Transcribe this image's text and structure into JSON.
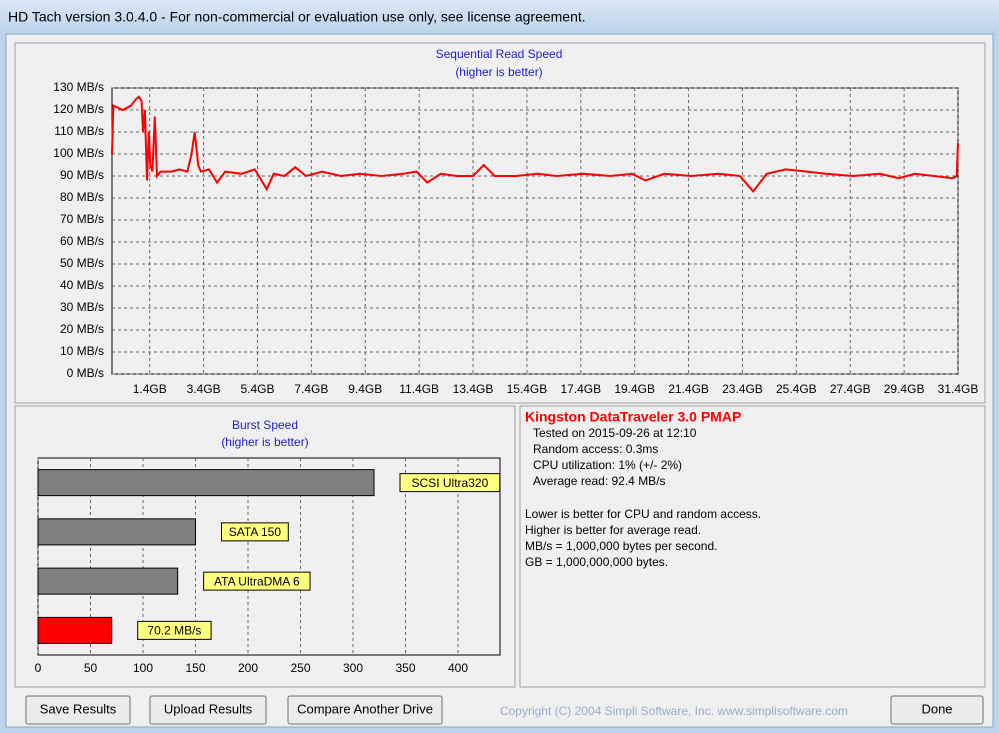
{
  "window": {
    "title": "HD Tach version 3.0.4.0  - For non-commercial or evaluation use only, see license agreement."
  },
  "chart_data": [
    {
      "type": "line",
      "title": "Sequential Read Speed",
      "subtitle": "(higher is better)",
      "color": "#ff0000",
      "grid": true,
      "x": [
        0,
        0.05,
        0.4,
        0.7,
        0.9,
        1.0,
        1.1,
        1.15,
        1.22,
        1.3,
        1.37,
        1.42,
        1.5,
        1.59,
        1.67,
        1.8,
        2.2,
        2.5,
        2.8,
        2.95,
        3.07,
        3.2,
        3.3,
        3.6,
        3.9,
        4.2,
        4.8,
        5.3,
        5.74,
        6.0,
        6.4,
        6.8,
        7.2,
        7.8,
        8.5,
        9.2,
        10.0,
        10.8,
        11.3,
        11.7,
        12.2,
        12.8,
        13.4,
        13.8,
        14.2,
        15.0,
        15.8,
        16.5,
        17.5,
        18.5,
        19.3,
        19.8,
        20.5,
        21.5,
        22.5,
        23.3,
        23.8,
        24.3,
        25.0,
        25.8,
        26.5,
        27.5,
        28.5,
        29.2,
        29.8,
        30.5,
        31.2,
        31.35,
        31.4
      ],
      "values": [
        100,
        122,
        120,
        122,
        125,
        126,
        124,
        110,
        120,
        88,
        110,
        95,
        92,
        117,
        90,
        92,
        92,
        93,
        92,
        100,
        110,
        95,
        92,
        93,
        87,
        92,
        91,
        93,
        84,
        91,
        90,
        94,
        90,
        92,
        90,
        91,
        90,
        91,
        92,
        87,
        91,
        90,
        90,
        95,
        90,
        90,
        91,
        90,
        91,
        90,
        91,
        88,
        91,
        90,
        91,
        90,
        83,
        91,
        93,
        92,
        91,
        90,
        91,
        89,
        91,
        90,
        89,
        90,
        105
      ],
      "xlim": [
        0,
        31.4
      ],
      "xticks": [
        {
          "value": 1.4,
          "label": "1.4GB"
        },
        {
          "value": 3.4,
          "label": "3.4GB"
        },
        {
          "value": 5.4,
          "label": "5.4GB"
        },
        {
          "value": 7.4,
          "label": "7.4GB"
        },
        {
          "value": 9.4,
          "label": "9.4GB"
        },
        {
          "value": 11.4,
          "label": "11.4GB"
        },
        {
          "value": 13.4,
          "label": "13.4GB"
        },
        {
          "value": 15.4,
          "label": "15.4GB"
        },
        {
          "value": 17.4,
          "label": "17.4GB"
        },
        {
          "value": 19.4,
          "label": "19.4GB"
        },
        {
          "value": 21.4,
          "label": "21.4GB"
        },
        {
          "value": 23.4,
          "label": "23.4GB"
        },
        {
          "value": 25.4,
          "label": "25.4GB"
        },
        {
          "value": 27.4,
          "label": "27.4GB"
        },
        {
          "value": 29.4,
          "label": "29.4GB"
        },
        {
          "value": 31.4,
          "label": "31.4GB"
        }
      ],
      "ylim": [
        0,
        130
      ],
      "yticks": [
        {
          "value": 0,
          "label": "0 MB/s"
        },
        {
          "value": 10,
          "label": "10 MB/s"
        },
        {
          "value": 20,
          "label": "20 MB/s"
        },
        {
          "value": 30,
          "label": "30 MB/s"
        },
        {
          "value": 40,
          "label": "40 MB/s"
        },
        {
          "value": 50,
          "label": "50 MB/s"
        },
        {
          "value": 60,
          "label": "60 MB/s"
        },
        {
          "value": 70,
          "label": "70 MB/s"
        },
        {
          "value": 80,
          "label": "80 MB/s"
        },
        {
          "value": 90,
          "label": "90 MB/s"
        },
        {
          "value": 100,
          "label": "100 MB/s"
        },
        {
          "value": 110,
          "label": "110 MB/s"
        },
        {
          "value": 120,
          "label": "120 MB/s"
        },
        {
          "value": 130,
          "label": "130 MB/s"
        }
      ]
    },
    {
      "type": "hbar",
      "title": "Burst Speed",
      "subtitle": "(higher is better)",
      "grid": true,
      "categories": [
        "SCSI Ultra320",
        "SATA 150",
        "ATA UltraDMA 6",
        null
      ],
      "values": [
        320,
        150,
        133,
        70.2
      ],
      "value_labels": [
        null,
        null,
        null,
        "70.2 MB/s"
      ],
      "colors": [
        "#808080",
        "#808080",
        "#808080",
        "#ff0000"
      ],
      "xlim": [
        0,
        440
      ],
      "xticks": [
        0,
        50,
        100,
        150,
        200,
        250,
        300,
        350,
        400
      ]
    }
  ],
  "info": {
    "drive": "Kingston DataTraveler 3.0 PMAP",
    "details": [
      "Tested on 2015-09-26 at 12:10",
      "Random access: 0.3ms",
      "CPU utilization: 1% (+/- 2%)",
      "Average read: 92.4 MB/s"
    ],
    "notes": [
      "Lower is better for CPU and random access.",
      "Higher is better for average read.",
      "MB/s = 1,000,000 bytes per second.",
      "GB = 1,000,000,000 bytes."
    ]
  },
  "buttons": [
    "Save Results",
    "Upload Results",
    "Compare Another Drive",
    "Done"
  ],
  "copyright": "Copyright (C) 2004 Simpli Software, Inc. www.simplisoftware.com"
}
